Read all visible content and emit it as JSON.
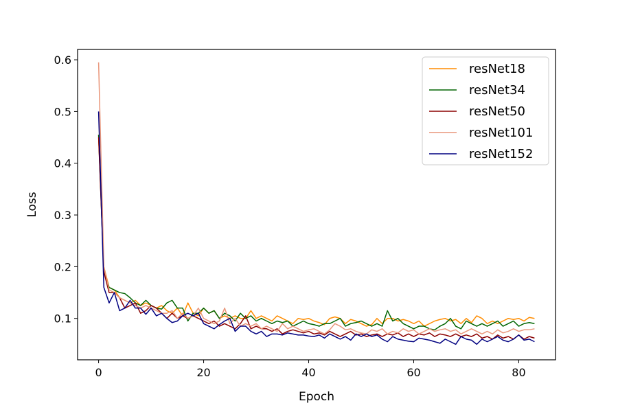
{
  "chart_data": {
    "type": "line",
    "title": "",
    "xlabel": "Epoch",
    "ylabel": "Loss",
    "xlim": [
      -4,
      87
    ],
    "ylim": [
      0.02,
      0.62
    ],
    "x_ticks": [
      0,
      20,
      40,
      60,
      80
    ],
    "x_tick_labels": [
      "0",
      "20",
      "40",
      "60",
      "80"
    ],
    "y_ticks": [
      0.1,
      0.2,
      0.3,
      0.4,
      0.5,
      0.6
    ],
    "y_tick_labels": [
      "0.1",
      "0.2",
      "0.3",
      "0.4",
      "0.5",
      "0.6"
    ],
    "grid": false,
    "legend_position": "top-right",
    "series": [
      {
        "name": "resNet18",
        "color": "#ff8c00",
        "values": [
          0.455,
          0.2,
          0.16,
          0.155,
          0.14,
          0.135,
          0.13,
          0.135,
          0.125,
          0.13,
          0.125,
          0.12,
          0.125,
          0.115,
          0.11,
          0.12,
          0.105,
          0.13,
          0.11,
          0.105,
          0.12,
          0.11,
          0.115,
          0.1,
          0.105,
          0.1,
          0.105,
          0.1,
          0.1,
          0.115,
          0.1,
          0.105,
          0.1,
          0.095,
          0.105,
          0.1,
          0.095,
          0.09,
          0.1,
          0.098,
          0.1,
          0.095,
          0.092,
          0.088,
          0.1,
          0.103,
          0.1,
          0.09,
          0.098,
          0.095,
          0.09,
          0.085,
          0.088,
          0.1,
          0.09,
          0.1,
          0.1,
          0.095,
          0.098,
          0.095,
          0.09,
          0.095,
          0.085,
          0.09,
          0.095,
          0.098,
          0.1,
          0.095,
          0.098,
          0.09,
          0.1,
          0.092,
          0.105,
          0.1,
          0.09,
          0.095,
          0.09,
          0.095,
          0.1,
          0.098,
          0.1,
          0.095,
          0.102,
          0.1
        ]
      },
      {
        "name": "resNet34",
        "color": "#006400",
        "values": [
          0.455,
          0.19,
          0.16,
          0.155,
          0.15,
          0.148,
          0.14,
          0.13,
          0.125,
          0.135,
          0.125,
          0.12,
          0.118,
          0.13,
          0.135,
          0.12,
          0.12,
          0.095,
          0.11,
          0.11,
          0.12,
          0.11,
          0.115,
          0.1,
          0.11,
          0.105,
          0.095,
          0.11,
          0.1,
          0.105,
          0.095,
          0.1,
          0.095,
          0.09,
          0.095,
          0.092,
          0.095,
          0.085,
          0.09,
          0.095,
          0.09,
          0.088,
          0.085,
          0.09,
          0.09,
          0.095,
          0.1,
          0.085,
          0.09,
          0.092,
          0.095,
          0.09,
          0.085,
          0.09,
          0.085,
          0.115,
          0.095,
          0.1,
          0.09,
          0.085,
          0.08,
          0.085,
          0.085,
          0.08,
          0.078,
          0.085,
          0.09,
          0.1,
          0.085,
          0.08,
          0.095,
          0.09,
          0.085,
          0.09,
          0.085,
          0.09,
          0.095,
          0.085,
          0.09,
          0.095,
          0.085,
          0.09,
          0.092,
          0.09
        ]
      },
      {
        "name": "resNet50",
        "color": "#8b0000",
        "values": [
          0.45,
          0.19,
          0.15,
          0.15,
          0.14,
          0.12,
          0.125,
          0.13,
          0.11,
          0.115,
          0.125,
          0.12,
          0.11,
          0.1,
          0.11,
          0.1,
          0.105,
          0.1,
          0.105,
          0.1,
          0.095,
          0.09,
          0.095,
          0.085,
          0.09,
          0.085,
          0.08,
          0.09,
          0.105,
          0.08,
          0.085,
          0.08,
          0.08,
          0.075,
          0.08,
          0.07,
          0.075,
          0.078,
          0.075,
          0.072,
          0.075,
          0.07,
          0.072,
          0.068,
          0.075,
          0.07,
          0.065,
          0.07,
          0.075,
          0.068,
          0.07,
          0.065,
          0.068,
          0.07,
          0.065,
          0.07,
          0.068,
          0.072,
          0.065,
          0.07,
          0.065,
          0.07,
          0.068,
          0.072,
          0.065,
          0.07,
          0.068,
          0.065,
          0.07,
          0.065,
          0.068,
          0.065,
          0.07,
          0.062,
          0.065,
          0.06,
          0.068,
          0.062,
          0.065,
          0.06,
          0.068,
          0.06,
          0.065,
          0.062
        ]
      },
      {
        "name": "resNet101",
        "color": "#e9967a",
        "values": [
          0.595,
          0.2,
          0.155,
          0.15,
          0.14,
          0.135,
          0.13,
          0.125,
          0.12,
          0.125,
          0.12,
          0.115,
          0.11,
          0.11,
          0.115,
          0.1,
          0.11,
          0.1,
          0.105,
          0.12,
          0.1,
          0.095,
          0.09,
          0.095,
          0.12,
          0.09,
          0.1,
          0.085,
          0.09,
          0.085,
          0.09,
          0.08,
          0.085,
          0.08,
          0.075,
          0.09,
          0.08,
          0.085,
          0.08,
          0.075,
          0.078,
          0.08,
          0.075,
          0.07,
          0.078,
          0.09,
          0.085,
          0.078,
          0.08,
          0.075,
          0.072,
          0.07,
          0.078,
          0.075,
          0.08,
          0.07,
          0.075,
          0.072,
          0.08,
          0.075,
          0.078,
          0.07,
          0.075,
          0.08,
          0.075,
          0.078,
          0.08,
          0.075,
          0.078,
          0.07,
          0.075,
          0.08,
          0.075,
          0.07,
          0.075,
          0.07,
          0.078,
          0.072,
          0.075,
          0.08,
          0.075,
          0.078,
          0.078,
          0.08
        ]
      },
      {
        "name": "resNet152",
        "color": "#000080",
        "values": [
          0.5,
          0.16,
          0.13,
          0.15,
          0.115,
          0.12,
          0.135,
          0.12,
          0.12,
          0.108,
          0.12,
          0.105,
          0.11,
          0.1,
          0.092,
          0.095,
          0.105,
          0.11,
          0.105,
          0.11,
          0.09,
          0.085,
          0.08,
          0.088,
          0.095,
          0.1,
          0.075,
          0.085,
          0.085,
          0.075,
          0.07,
          0.075,
          0.065,
          0.07,
          0.07,
          0.068,
          0.072,
          0.07,
          0.068,
          0.068,
          0.066,
          0.065,
          0.068,
          0.062,
          0.07,
          0.065,
          0.06,
          0.065,
          0.058,
          0.07,
          0.065,
          0.07,
          0.065,
          0.068,
          0.06,
          0.055,
          0.065,
          0.06,
          0.058,
          0.056,
          0.055,
          0.062,
          0.06,
          0.058,
          0.055,
          0.052,
          0.06,
          0.055,
          0.05,
          0.065,
          0.06,
          0.058,
          0.05,
          0.06,
          0.055,
          0.06,
          0.065,
          0.058,
          0.055,
          0.06,
          0.068,
          0.058,
          0.06,
          0.055
        ]
      }
    ]
  }
}
